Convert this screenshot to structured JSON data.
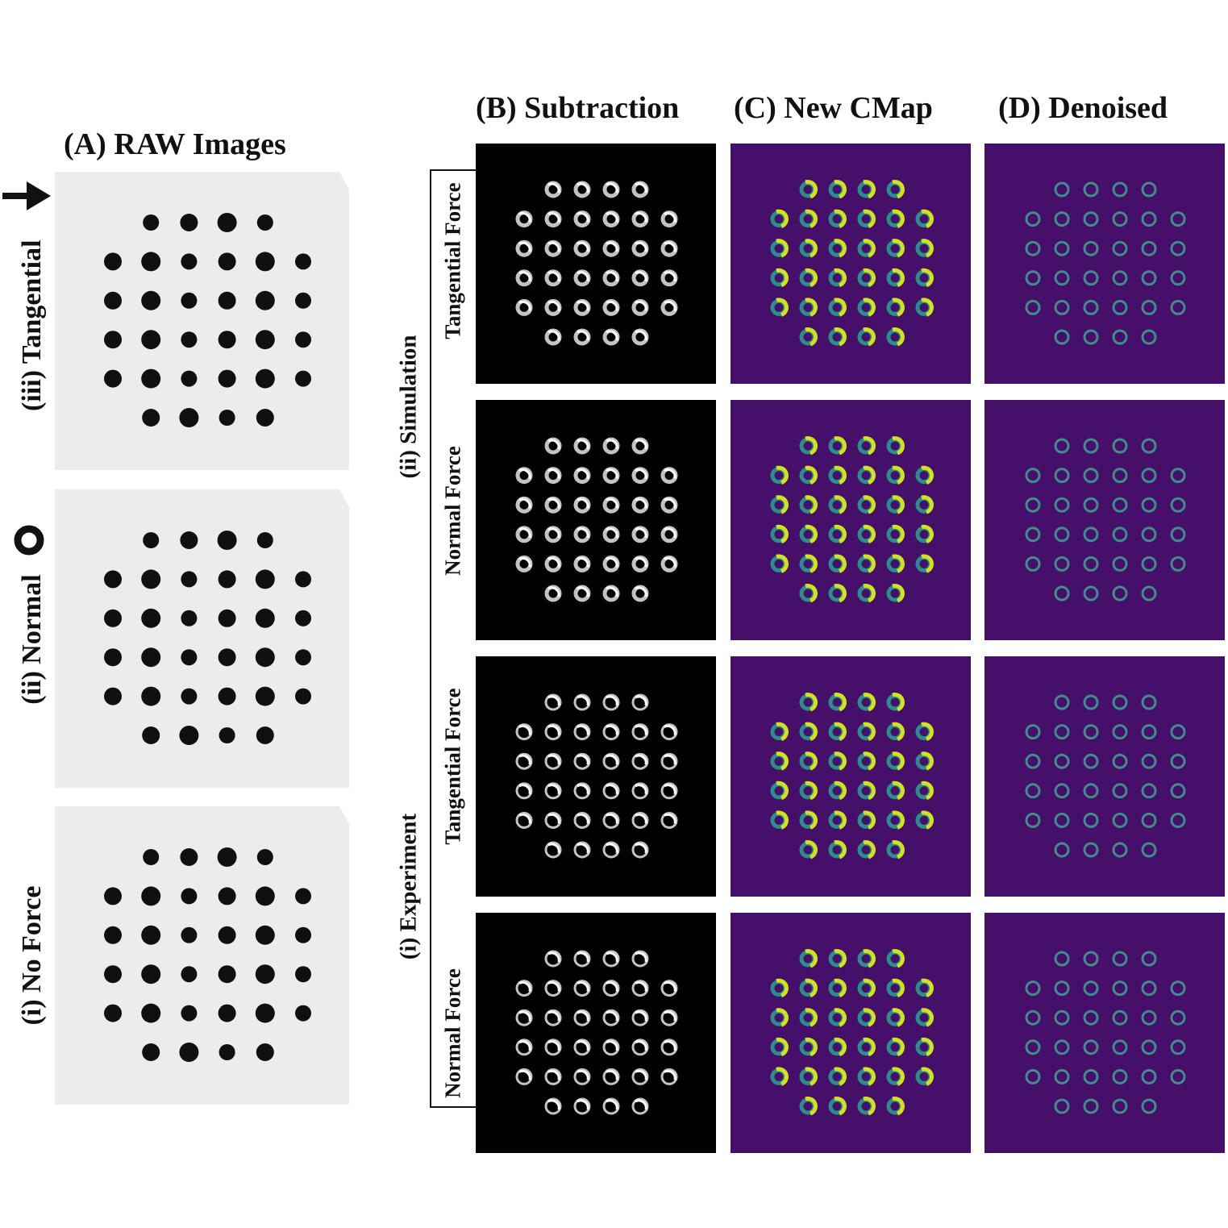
{
  "columns": {
    "a": "(A) RAW Images",
    "b": "(B) Subtraction",
    "c": "(C) New CMap",
    "d": "(D) Denoised"
  },
  "raw_rows": {
    "tangential": "(iii) Tangential",
    "normal": "(ii) Normal",
    "no_force": "(i) No Force"
  },
  "groups": {
    "simulation": "(ii) Simulation",
    "experiment": "(i) Experiment"
  },
  "force_rows": {
    "sim_tangential": "Tangential Force",
    "sim_normal": "Normal Force",
    "exp_tangential": "Tangential Force",
    "exp_normal": "Normal Force"
  },
  "icons": {
    "tangential": "right-arrow-icon",
    "normal": "ring-icon"
  },
  "colors": {
    "raw_background": "#ececec",
    "raw_dot": "#101010",
    "subtraction_background": "#000000",
    "subtraction_marker": "#d8d8d8",
    "cmap_background": "#450f6a",
    "cmap_teal": "#2a8f8c",
    "cmap_yellow": "#d2e21b",
    "denoised_marker": "#3f8e8c"
  },
  "marker_grid": {
    "rows": [
      4,
      6,
      6,
      6,
      6,
      4
    ]
  }
}
